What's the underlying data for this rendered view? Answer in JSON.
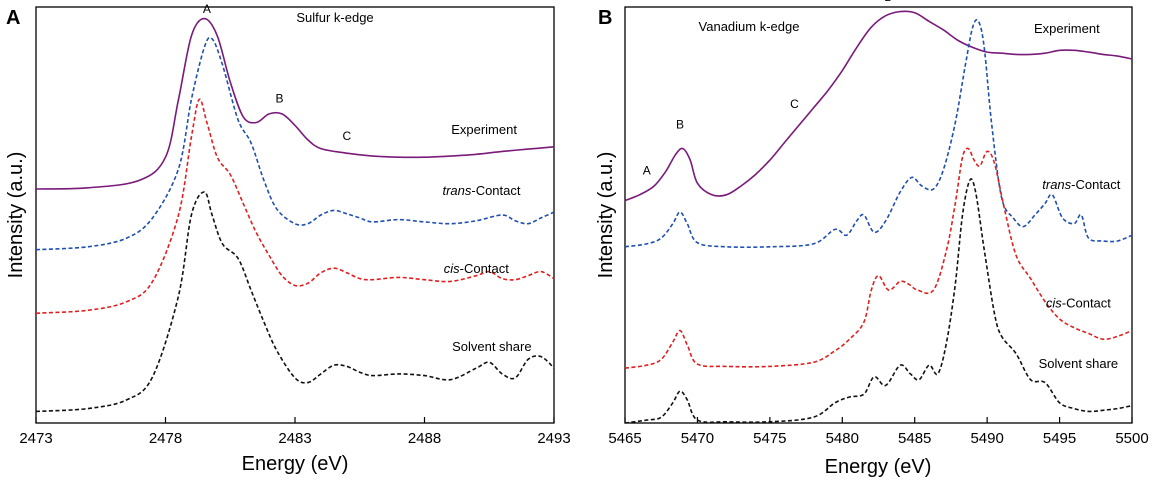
{
  "chart_data": [
    {
      "panel": "A",
      "type": "line",
      "title": "Sulfur k-edge",
      "xlabel": "Energy (eV)",
      "ylabel": "Intensity (a.u.)",
      "xlim": [
        2473,
        2493
      ],
      "ylim": [
        0,
        7.2
      ],
      "xticks": [
        2473,
        2478,
        2483,
        2488,
        2493
      ],
      "series": [
        {
          "name": "Experiment",
          "color": "#7a1a7a",
          "dash": false,
          "label": {
            "prefix": "",
            "italic": "",
            "suffix": "Experiment"
          },
          "label_pos": [
            2490.3,
            5.0
          ],
          "x": [
            2473,
            2475,
            2477,
            2478.0,
            2478.5,
            2479.0,
            2479.5,
            2480.0,
            2480.5,
            2481.0,
            2481.5,
            2482.0,
            2482.5,
            2483.0,
            2483.5,
            2484.0,
            2485.0,
            2486.0,
            2487.0,
            2488.0,
            2489.0,
            2490.0,
            2491.0,
            2492.0,
            2493.0
          ],
          "y": [
            4.05,
            4.07,
            4.2,
            4.6,
            5.6,
            6.7,
            7.0,
            6.7,
            5.9,
            5.3,
            5.2,
            5.35,
            5.35,
            5.15,
            4.9,
            4.75,
            4.67,
            4.62,
            4.6,
            4.6,
            4.62,
            4.65,
            4.7,
            4.74,
            4.78
          ]
        },
        {
          "name": "trans-Contact",
          "color": "#1f4fb0",
          "dash": true,
          "label": {
            "prefix": "",
            "italic": "trans",
            "suffix": "-Contact"
          },
          "label_pos": [
            2490.2,
            3.95
          ],
          "x": [
            2473,
            2475,
            2476.5,
            2477.5,
            2478.5,
            2479.0,
            2479.5,
            2479.8,
            2480.2,
            2480.8,
            2481.3,
            2481.8,
            2482.3,
            2483.0,
            2483.5,
            2484.0,
            2484.5,
            2485.0,
            2485.5,
            2486.0,
            2487.0,
            2488.0,
            2489.0,
            2490.0,
            2491.0,
            2491.5,
            2492.0,
            2492.5,
            2493.0
          ],
          "y": [
            3.0,
            3.05,
            3.2,
            3.55,
            4.4,
            5.6,
            6.5,
            6.65,
            6.2,
            5.25,
            4.85,
            4.2,
            3.7,
            3.45,
            3.45,
            3.6,
            3.68,
            3.62,
            3.55,
            3.48,
            3.52,
            3.48,
            3.45,
            3.5,
            3.6,
            3.5,
            3.45,
            3.55,
            3.65
          ]
        },
        {
          "name": "cis-Contact",
          "color": "#e02020",
          "dash": true,
          "label": {
            "prefix": "",
            "italic": "cis",
            "suffix": "-Contact"
          },
          "label_pos": [
            2490.0,
            2.6
          ],
          "x": [
            2473,
            2475,
            2476.5,
            2477.5,
            2478.5,
            2479.0,
            2479.3,
            2479.6,
            2480.0,
            2480.5,
            2481.0,
            2481.5,
            2482.0,
            2482.5,
            2483.0,
            2483.5,
            2484.0,
            2484.5,
            2485.0,
            2485.5,
            2486.0,
            2487.0,
            2488.0,
            2489.0,
            2490.0,
            2490.5,
            2491.0,
            2491.5,
            2492.0,
            2492.5,
            2493.0
          ],
          "y": [
            1.9,
            1.95,
            2.1,
            2.45,
            3.6,
            4.95,
            5.6,
            5.2,
            4.6,
            4.3,
            3.8,
            3.3,
            2.9,
            2.55,
            2.38,
            2.42,
            2.6,
            2.68,
            2.6,
            2.5,
            2.48,
            2.52,
            2.48,
            2.45,
            2.55,
            2.62,
            2.5,
            2.48,
            2.55,
            2.62,
            2.5
          ]
        },
        {
          "name": "Solvent share",
          "color": "#111111",
          "dash": true,
          "label": {
            "prefix": "",
            "italic": "",
            "suffix": "Solvent share"
          },
          "label_pos": [
            2490.6,
            1.25
          ],
          "x": [
            2473,
            2475,
            2476.5,
            2477.5,
            2478.5,
            2479.0,
            2479.5,
            2479.8,
            2480.2,
            2480.8,
            2481.3,
            2481.8,
            2482.3,
            2483.0,
            2483.5,
            2484.0,
            2484.5,
            2485.0,
            2485.5,
            2486.0,
            2487.0,
            2488.0,
            2489.0,
            2490.0,
            2490.5,
            2491.0,
            2491.5,
            2492.0,
            2492.5,
            2493.0
          ],
          "y": [
            0.2,
            0.25,
            0.4,
            0.8,
            2.2,
            3.6,
            4.0,
            3.6,
            3.1,
            2.85,
            2.3,
            1.75,
            1.25,
            0.78,
            0.7,
            0.85,
            1.0,
            0.98,
            0.88,
            0.82,
            0.85,
            0.82,
            0.75,
            0.95,
            1.05,
            0.85,
            0.78,
            1.1,
            1.15,
            0.95
          ]
        }
      ],
      "annotations": [
        {
          "text": "A",
          "x": 2479.6,
          "y": 7.1
        },
        {
          "text": "B",
          "x": 2482.4,
          "y": 5.55
        },
        {
          "text": "C",
          "x": 2485.0,
          "y": 4.9
        }
      ]
    },
    {
      "panel": "B",
      "type": "line",
      "title": "Vanadium k-edge",
      "xlabel": "Energy (eV)",
      "ylabel": "Intensity (a.u.)",
      "xlim": [
        5465,
        5500
      ],
      "ylim": [
        0,
        7.2
      ],
      "xticks": [
        5465,
        5470,
        5475,
        5480,
        5485,
        5490,
        5495,
        5500
      ],
      "series": [
        {
          "name": "Experiment",
          "color": "#7a1a7a",
          "dash": false,
          "label": {
            "prefix": "",
            "italic": "",
            "suffix": "Experiment"
          },
          "label_pos": [
            5495.5,
            6.75
          ],
          "x": [
            5465,
            5466,
            5467,
            5467.8,
            5468.5,
            5469.0,
            5469.5,
            5470.0,
            5471.0,
            5472.0,
            5473.0,
            5474.0,
            5475.0,
            5476.0,
            5477.0,
            5478.0,
            5479.0,
            5480.0,
            5481.0,
            5482.0,
            5483.0,
            5484.0,
            5485.0,
            5486.0,
            5487.0,
            5488.0,
            5489.0,
            5490.0,
            5491.0,
            5492.0,
            5493.0,
            5494.0,
            5495.0,
            5496.0,
            5497.0,
            5498.0,
            5499.0,
            5500.0
          ],
          "y": [
            3.85,
            3.95,
            4.1,
            4.35,
            4.65,
            4.75,
            4.55,
            4.15,
            3.95,
            3.95,
            4.1,
            4.3,
            4.55,
            4.85,
            5.15,
            5.45,
            5.75,
            6.1,
            6.5,
            6.85,
            7.05,
            7.12,
            7.1,
            6.95,
            6.8,
            6.62,
            6.5,
            6.42,
            6.4,
            6.38,
            6.38,
            6.4,
            6.45,
            6.45,
            6.42,
            6.38,
            6.35,
            6.3
          ]
        },
        {
          "name": "trans-Contact",
          "color": "#1f4fb0",
          "dash": true,
          "label": {
            "prefix": "",
            "italic": "trans",
            "suffix": "-Contact"
          },
          "label_pos": [
            5496.5,
            4.05
          ],
          "x": [
            5465,
            5466.5,
            5467.5,
            5468.3,
            5468.8,
            5469.3,
            5470.0,
            5472.0,
            5475.0,
            5478.0,
            5479.5,
            5480.3,
            5481.0,
            5481.5,
            5482.2,
            5483.0,
            5484.0,
            5484.8,
            5485.5,
            5486.3,
            5487.0,
            5487.8,
            5488.5,
            5489.0,
            5489.4,
            5489.8,
            5490.3,
            5491.0,
            5491.8,
            5492.5,
            5493.3,
            5494.0,
            5494.5,
            5495.2,
            5496.0,
            5496.5,
            5497.0,
            5498.0,
            5499.0,
            5500.0
          ],
          "y": [
            3.05,
            3.1,
            3.2,
            3.45,
            3.65,
            3.45,
            3.12,
            3.05,
            3.05,
            3.1,
            3.35,
            3.25,
            3.5,
            3.6,
            3.3,
            3.5,
            4.0,
            4.25,
            4.1,
            4.05,
            4.4,
            5.2,
            6.2,
            6.85,
            6.95,
            6.5,
            5.2,
            3.9,
            3.55,
            3.4,
            3.6,
            3.8,
            3.95,
            3.55,
            3.45,
            3.6,
            3.2,
            3.15,
            3.15,
            3.25
          ]
        },
        {
          "name": "cis-Contact",
          "color": "#e02020",
          "dash": true,
          "label": {
            "prefix": "",
            "italic": "cis",
            "suffix": "-Contact"
          },
          "label_pos": [
            5496.3,
            2.0
          ],
          "x": [
            5465,
            5466.5,
            5467.5,
            5468.3,
            5468.8,
            5469.3,
            5470.0,
            5472.0,
            5475.0,
            5478.0,
            5479.5,
            5480.5,
            5481.5,
            5482.0,
            5482.5,
            5483.2,
            5484.0,
            5484.6,
            5485.2,
            5486.3,
            5487.2,
            5487.8,
            5488.3,
            5488.7,
            5489.1,
            5489.5,
            5490.0,
            5490.5,
            5491.2,
            5492.0,
            5493.0,
            5494.0,
            5495.0,
            5496.0,
            5497.0,
            5498.0,
            5499.0,
            5500.0
          ],
          "y": [
            0.95,
            1.0,
            1.1,
            1.4,
            1.6,
            1.35,
            1.02,
            0.98,
            0.98,
            1.05,
            1.25,
            1.45,
            1.75,
            2.3,
            2.55,
            2.3,
            2.45,
            2.4,
            2.3,
            2.3,
            3.0,
            3.8,
            4.6,
            4.75,
            4.55,
            4.45,
            4.7,
            4.5,
            3.7,
            2.9,
            2.5,
            2.1,
            1.8,
            1.65,
            1.55,
            1.45,
            1.5,
            1.6
          ]
        },
        {
          "name": "Solvent share",
          "color": "#111111",
          "dash": true,
          "label": {
            "prefix": "",
            "italic": "",
            "suffix": "Solvent share"
          },
          "label_pos": [
            5496.3,
            0.95
          ],
          "x": [
            5465,
            5466.5,
            5467.5,
            5468.3,
            5468.8,
            5469.3,
            5470.0,
            5472.0,
            5475.0,
            5478.0,
            5479.5,
            5480.5,
            5481.5,
            5482.2,
            5483.0,
            5484.0,
            5484.7,
            5485.3,
            5486.0,
            5486.6,
            5487.2,
            5487.8,
            5488.3,
            5488.8,
            5489.2,
            5489.8,
            5490.5,
            5491.0,
            5492.0,
            5493.0,
            5494.0,
            5495.0,
            5496.0,
            5497.0,
            5498.0,
            5499.0,
            5500.0
          ],
          "y": [
            0.0,
            0.05,
            0.1,
            0.35,
            0.55,
            0.4,
            0.05,
            0.02,
            0.02,
            0.1,
            0.35,
            0.45,
            0.5,
            0.8,
            0.65,
            1.0,
            0.85,
            0.75,
            1.0,
            0.85,
            1.4,
            2.4,
            3.6,
            4.2,
            4.0,
            3.0,
            1.9,
            1.5,
            1.2,
            0.75,
            0.7,
            0.35,
            0.25,
            0.2,
            0.22,
            0.25,
            0.3
          ]
        }
      ],
      "annotations": [
        {
          "text": "A",
          "x": 5466.5,
          "y": 4.3
        },
        {
          "text": "B",
          "x": 5468.8,
          "y": 5.1
        },
        {
          "text": "C",
          "x": 5476.7,
          "y": 5.45
        },
        {
          "text": "D",
          "x": 5483.2,
          "y": 7.3
        }
      ]
    }
  ]
}
